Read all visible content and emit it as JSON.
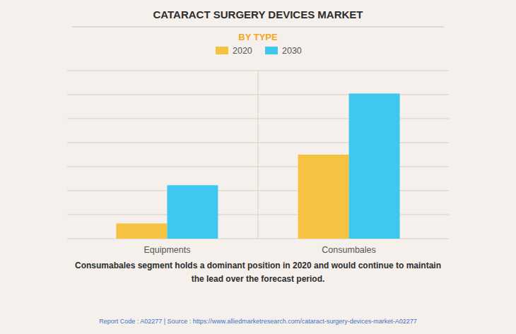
{
  "chart_data": {
    "type": "bar",
    "title": "CATARACT SURGERY DEVICES MARKET",
    "subtitle": "BY TYPE",
    "categories": [
      "Equipments",
      "Consumbales"
    ],
    "series": [
      {
        "name": "2020",
        "color": "#F5C242",
        "values": [
          1.0,
          5.5
        ]
      },
      {
        "name": "2030",
        "color": "#3EC8F0",
        "values": [
          3.5,
          9.5
        ]
      }
    ],
    "ylim": [
      0,
      11
    ],
    "yticks": [
      0,
      1.5714285714285714,
      3.142857142857143,
      4.714285714285714,
      6.285714285714286,
      7.857142857142857,
      9.428571428571429,
      11
    ],
    "grid": true,
    "tick_labels": "x",
    "legend": "top",
    "annotations": [
      "Consumabales segment holds a dominant position in 2020 and would continue to maintain\nthe lead over the forecast period.",
      "Report Code : A02277  |  Source : https://www.alliedmarketresearch.com/cataract-surgery-devices-market-A02277"
    ]
  }
}
